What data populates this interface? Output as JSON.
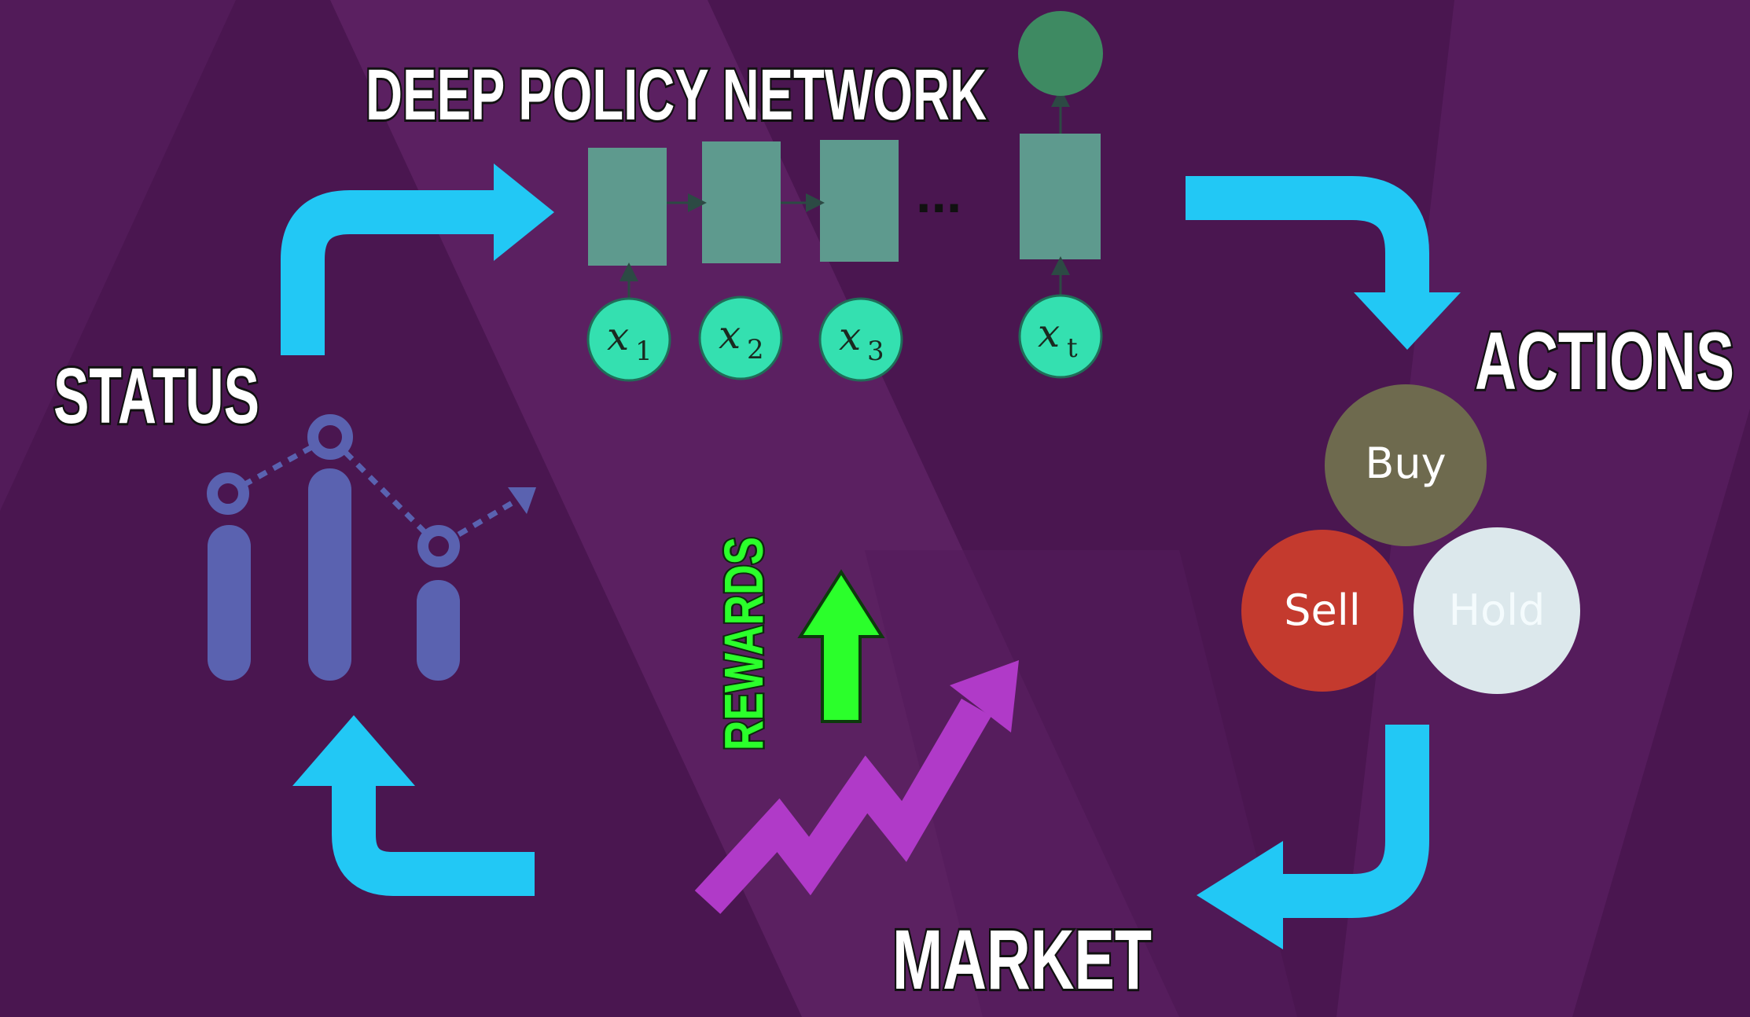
{
  "labels": {
    "deep_policy_network": "DEEP POLICY NETWORK",
    "status": "STATUS",
    "actions": "ACTIONS",
    "market": "MARKET",
    "rewards": "REWARDS"
  },
  "inputs": [
    {
      "base": "x",
      "sub": "1"
    },
    {
      "base": "x",
      "sub": "2"
    },
    {
      "base": "x",
      "sub": "3"
    },
    {
      "base": "x",
      "sub": "t"
    }
  ],
  "network_ellipsis": "...",
  "actions": {
    "buy": {
      "label": "Buy",
      "color": "#6e6a4e"
    },
    "sell": {
      "label": "Sell",
      "color": "#c43a2e"
    },
    "hold": {
      "label": "Hold",
      "color": "#dce8ec"
    }
  },
  "colors": {
    "background": "#4a1650",
    "background_stripe": "#5e2266",
    "flow_arrow": "#22c8f5",
    "network_box": "#5e9a8e",
    "input_node": "#34e0b0",
    "output_node": "#3e8a62",
    "reward_arrow": "#2bff2b",
    "market_arrow": "#b03ac8",
    "status_chart": "#5a62b0"
  },
  "icons": {
    "status_chart": "line-bar-chart-icon",
    "market_trend": "trend-up-arrow-icon",
    "reward_arrow": "up-arrow-icon"
  }
}
